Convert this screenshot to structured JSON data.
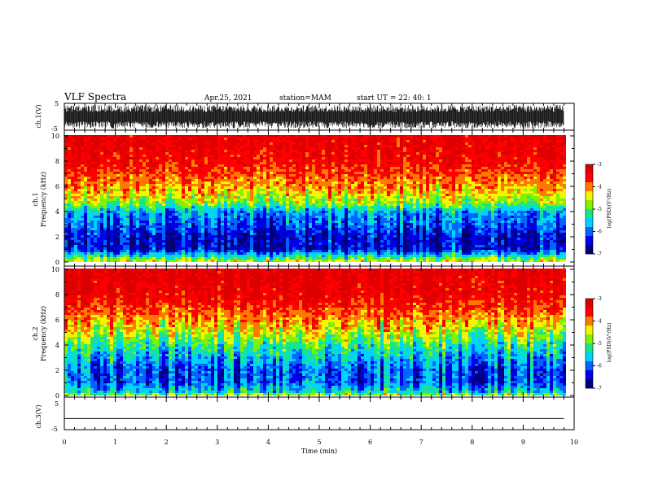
{
  "header": {
    "title": "VLF Spectra",
    "date": "Apr.25, 2021",
    "station": "station=MAM",
    "start": "start UT =  22: 40: 1"
  },
  "colors": {
    "spectrum": [
      "#00007a",
      "#0000e6",
      "#0064ff",
      "#00d2ff",
      "#19e68c",
      "#82f000",
      "#f5f500",
      "#ff7800",
      "#ff0000",
      "#dc0000"
    ],
    "waveform": "#000000",
    "axis": "#000000"
  },
  "chart_data": [
    {
      "type": "line",
      "name": "ch1-waveform",
      "ylabel": "ch.1(V)",
      "ylim": [
        -5,
        5
      ],
      "yticks": [
        "5",
        "-5"
      ],
      "xlim": [
        0,
        10
      ],
      "description_values": {
        "data_end_min": 9.8,
        "amplitude_V": [
          -4.5,
          4.5
        ]
      }
    },
    {
      "type": "heatmap",
      "name": "ch1-spectrogram",
      "ylabel_top": "ch.1",
      "ylabel": "Frequency (kHz)",
      "ylim": [
        0,
        10
      ],
      "yticks": [
        "0",
        "2",
        "4",
        "6",
        "8",
        "10"
      ],
      "xlim": [
        0,
        10
      ],
      "data_end_min": 9.8,
      "colorbar": {
        "label": "log(PSD)(V²/Hz)",
        "range": [
          -7,
          -3
        ],
        "ticks": [
          "-3",
          "-4",
          "-5",
          "-6",
          "-7"
        ]
      },
      "profile_kHz_logPSD": [
        [
          0,
          -4.5
        ],
        [
          0.4,
          -5.2
        ],
        [
          1,
          -6.5
        ],
        [
          2,
          -6.5
        ],
        [
          3,
          -6.1
        ],
        [
          4,
          -5.8
        ],
        [
          4.5,
          -5.0
        ],
        [
          5,
          -4.6
        ],
        [
          6,
          -4.1
        ],
        [
          7,
          -3.8
        ],
        [
          8,
          -3.5
        ],
        [
          10,
          -3.3
        ]
      ]
    },
    {
      "type": "heatmap",
      "name": "ch2-spectrogram",
      "ylabel_top": "ch.2",
      "ylabel": "Frequency (kHz)",
      "ylim": [
        0,
        10
      ],
      "yticks": [
        "0",
        "2",
        "4",
        "6",
        "8",
        "10"
      ],
      "xlim": [
        0,
        10
      ],
      "data_end_min": 9.8,
      "colorbar": {
        "label": "log(PSD)(V²/Hz)",
        "range": [
          -7,
          -3
        ],
        "ticks": [
          "-3",
          "-4",
          "-5",
          "-6",
          "-7"
        ]
      },
      "profile_kHz_logPSD": [
        [
          0,
          -4.6
        ],
        [
          0.3,
          -5.5
        ],
        [
          1,
          -6.1
        ],
        [
          2,
          -6.1
        ],
        [
          3,
          -5.7
        ],
        [
          4,
          -5.2
        ],
        [
          5,
          -4.6
        ],
        [
          6,
          -4.1
        ],
        [
          7,
          -3.7
        ],
        [
          8,
          -3.4
        ],
        [
          10,
          -3.2
        ]
      ]
    },
    {
      "type": "line",
      "name": "ch3-waveform",
      "ylabel": "ch.3(V)",
      "ylim": [
        -5,
        5
      ],
      "yticks": [
        "5",
        "-5"
      ],
      "xlim": [
        0,
        10
      ],
      "values": {
        "x": [
          0,
          9.8
        ],
        "y": [
          -2,
          -2
        ]
      }
    }
  ],
  "xaxis": {
    "label": "Time (min)",
    "ticks": [
      "0",
      "1",
      "2",
      "3",
      "4",
      "5",
      "6",
      "7",
      "8",
      "9",
      "10"
    ]
  }
}
